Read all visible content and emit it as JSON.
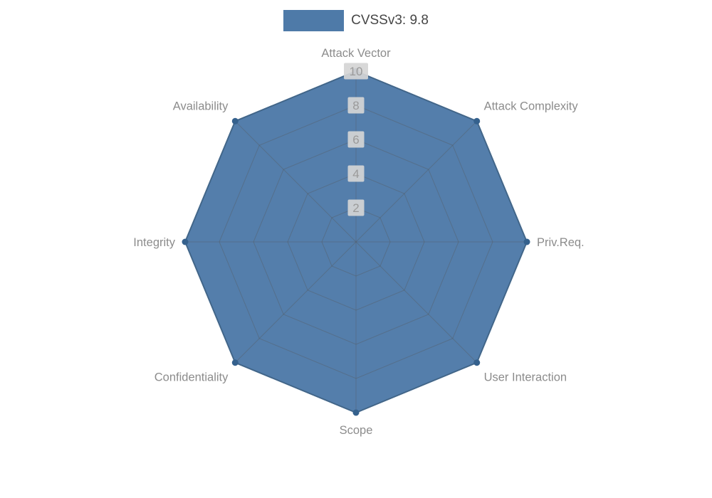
{
  "chart_data": {
    "type": "radar",
    "title": "",
    "categories": [
      "Attack Vector",
      "Attack Complexity",
      "Priv.Req.",
      "User Interaction",
      "Scope",
      "Confidentiality",
      "Integrity",
      "Availability"
    ],
    "series": [
      {
        "name": "CVSSv3: 9.8",
        "values": [
          10,
          10,
          10,
          10,
          10,
          10,
          10,
          10
        ]
      }
    ],
    "max": 10,
    "ticks": [
      2,
      4,
      6,
      8,
      10
    ],
    "legend_position": "top",
    "grid": true,
    "colors": {
      "fill": "#4e7aa8",
      "fill_opacity": "0.97",
      "stroke": "#3d6a96",
      "point": "#35618d",
      "grid": "#555e66",
      "axis_label": "#8c8c8c",
      "tick_text": "#9a9a9a",
      "tick_bg": "#d5d5d5",
      "legend_text": "#464646"
    }
  }
}
